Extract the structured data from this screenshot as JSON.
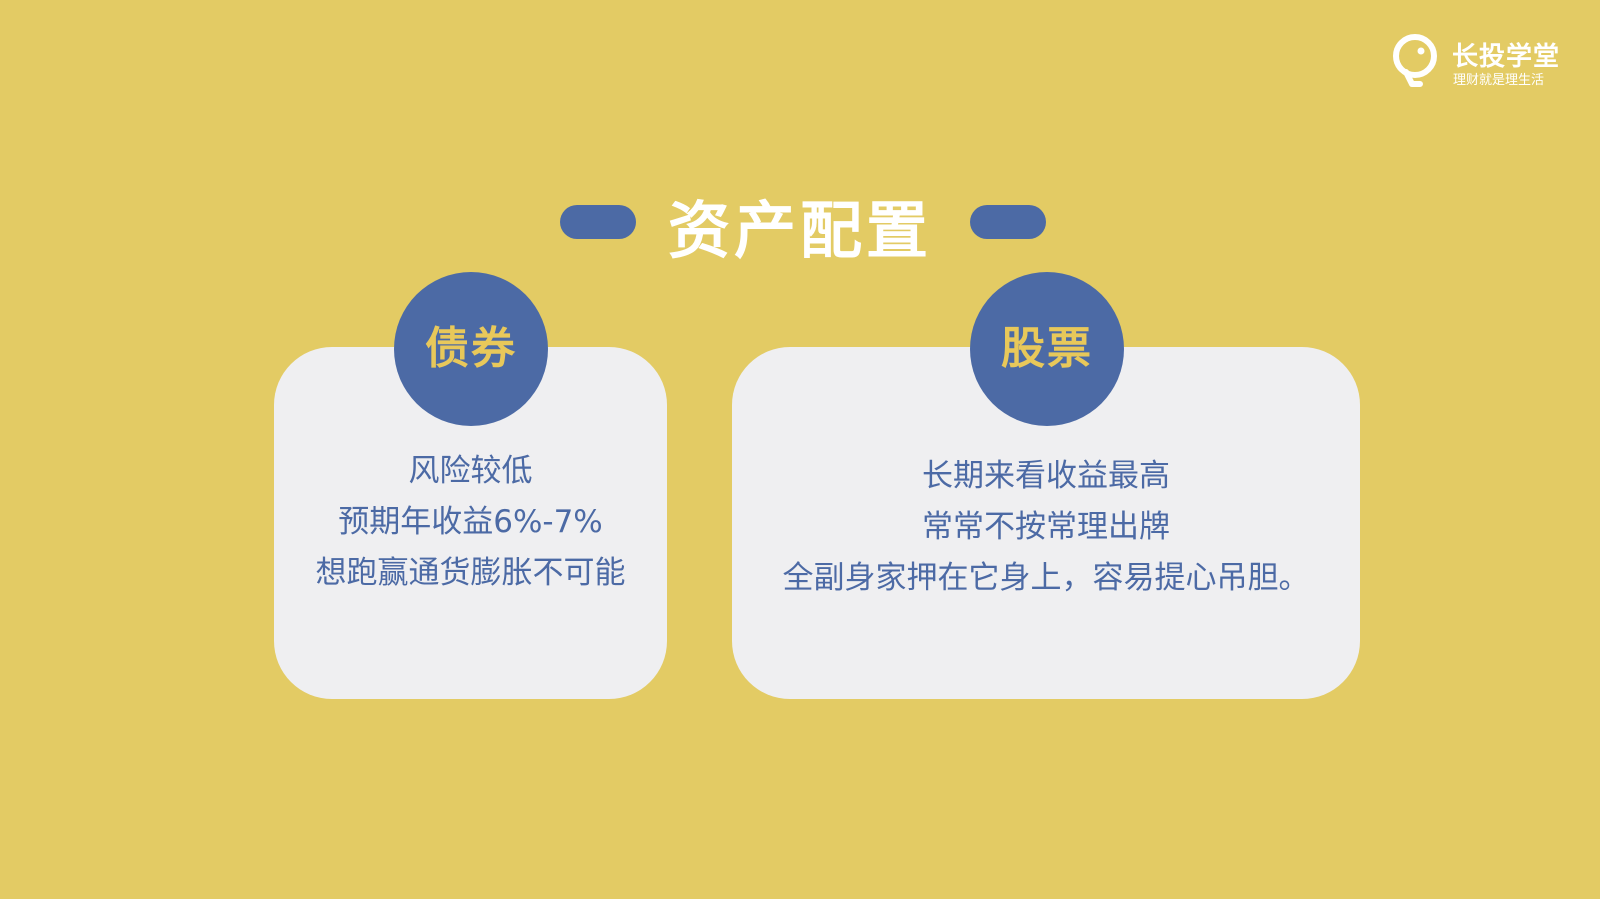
{
  "logo": {
    "icon": "lightbulb-icon",
    "title": "长投学堂",
    "slogan": "理财就是理生活"
  },
  "slide": {
    "title": "资产配置",
    "cards": [
      {
        "badge": "债券",
        "lines": [
          "风险较低",
          "预期年收益6%-7%",
          "想跑赢通货膨胀不可能"
        ]
      },
      {
        "badge": "股票",
        "lines": [
          "长期来看收益最高",
          "常常不按常理出牌",
          "全副身家押在它身上，容易提心吊胆。"
        ]
      }
    ]
  },
  "colors": {
    "background": "#E3CB64",
    "accent_blue": "#4C6AA5",
    "card": "#EFEFF1",
    "badge_text": "#E8C85A",
    "white": "#FFFFFF"
  }
}
